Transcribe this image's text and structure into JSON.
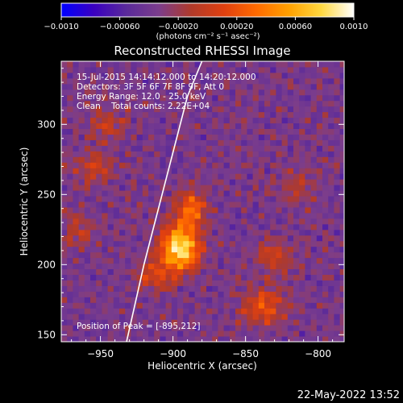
{
  "chart_data": {
    "type": "heatmap",
    "title": "Reconstructed RHESSI Image",
    "xlabel": "Heliocentric X (arcsec)",
    "ylabel": "Heliocentric Y (arcsec)",
    "xlim": [
      -977,
      -782
    ],
    "ylim": [
      145,
      345
    ],
    "x_ticks": [
      -950,
      -900,
      -850,
      -800
    ],
    "x_tick_labels": [
      "−950",
      "−900",
      "−850",
      "−800"
    ],
    "y_ticks": [
      150,
      200,
      250,
      300
    ],
    "y_tick_labels": [
      "150",
      "200",
      "250",
      "300"
    ],
    "annotations": [
      "15-Jul-2015 14:14:12.000 to 14:20:12.000",
      "Detectors: 3F 5F 6F 7F 8F 9F, Att 0",
      "Energy Range: 12.0 - 25.0 keV",
      "Clean    Total counts: 2.22E+04"
    ],
    "peak_label": "Position of Peak = [-895,212]",
    "peak": {
      "x": -895,
      "y": 212
    },
    "limb_line": [
      [
        -932,
        145
      ],
      [
        -920,
        200
      ],
      [
        -905,
        260
      ],
      [
        -890,
        320
      ],
      [
        -880,
        345
      ]
    ],
    "colorbar": {
      "range": [
        -0.001,
        0.001
      ],
      "ticks": [
        -0.001,
        -0.0006,
        -0.0002,
        0.0002,
        0.0006,
        0.001
      ],
      "tick_labels": [
        "−0.0010",
        "−0.00060",
        "−0.00020",
        "0.00020",
        "0.00060",
        "0.0010"
      ],
      "units": "(photons cm⁻² s⁻¹ asec⁻²)",
      "stops": [
        "#0000ff",
        "#3a00c0",
        "#5a2a9a",
        "#7b3d8c",
        "#b03a2a",
        "#e04010",
        "#ff6a00",
        "#ffa000",
        "#ffd840",
        "#ffffff"
      ]
    },
    "sources": [
      {
        "x": -895,
        "y": 212,
        "sx": 9,
        "sy": 11,
        "amp": 1.0
      },
      {
        "x": -888,
        "y": 240,
        "sx": 7,
        "sy": 9,
        "amp": 0.55
      },
      {
        "x": -912,
        "y": 192,
        "sx": 8,
        "sy": 8,
        "amp": 0.35
      },
      {
        "x": -838,
        "y": 170,
        "sx": 10,
        "sy": 9,
        "amp": 0.45
      },
      {
        "x": -830,
        "y": 205,
        "sx": 9,
        "sy": 8,
        "amp": 0.3
      },
      {
        "x": -955,
        "y": 270,
        "sx": 9,
        "sy": 9,
        "amp": 0.3
      },
      {
        "x": -965,
        "y": 225,
        "sx": 7,
        "sy": 9,
        "amp": 0.25
      },
      {
        "x": -945,
        "y": 300,
        "sx": 9,
        "sy": 8,
        "amp": 0.25
      },
      {
        "x": -815,
        "y": 255,
        "sx": 9,
        "sy": 9,
        "amp": 0.2
      }
    ],
    "timestamp": "22-May-2022 13:52"
  }
}
